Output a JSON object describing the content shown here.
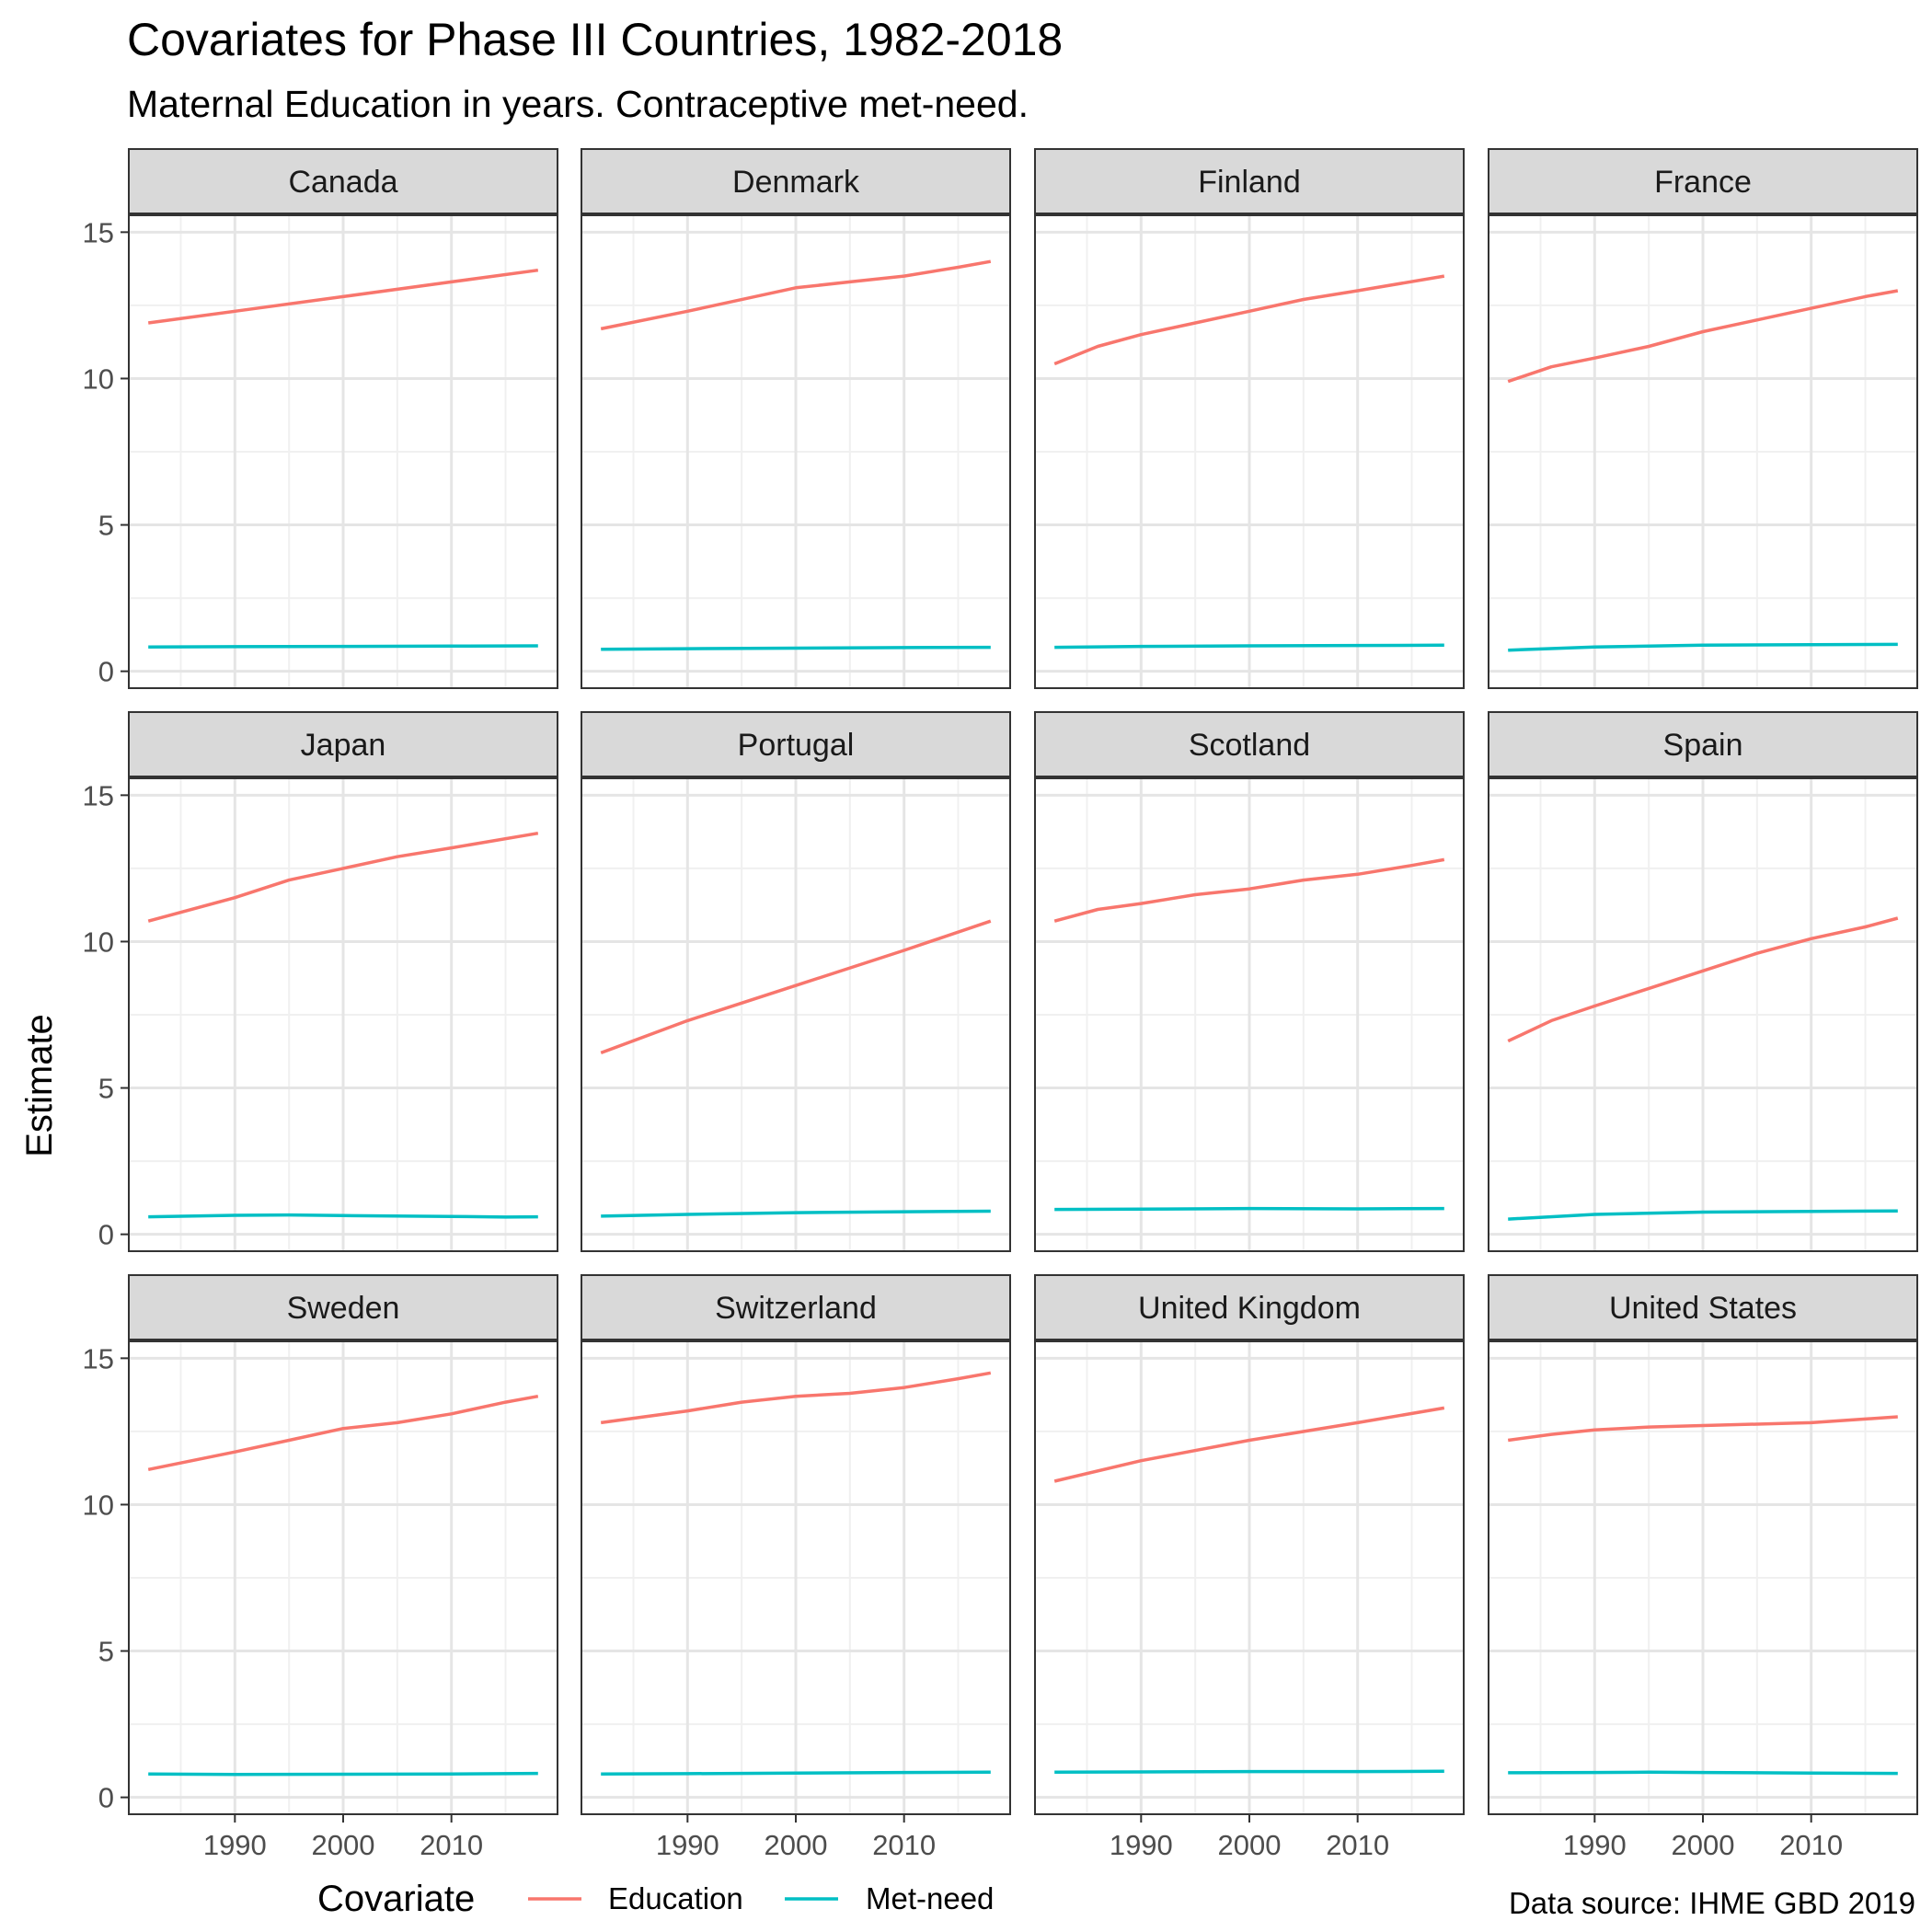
{
  "chart_data": {
    "type": "line",
    "title": "Covariates for Phase III Countries, 1982-2018",
    "subtitle": "Maternal Education in years. Contraceptive met-need.",
    "ylabel": "Estimate",
    "xlabel": "",
    "caption": "Data source: IHME GBD 2019",
    "legend": {
      "title": "Covariate",
      "position": "bottom",
      "items": [
        {
          "name": "Education",
          "color": "#F8766D"
        },
        {
          "name": "Met-need",
          "color": "#00BFC4"
        }
      ]
    },
    "xlim": [
      1982,
      2018
    ],
    "ylim": [
      0,
      15
    ],
    "x_ticks": [
      1990,
      2000,
      2010
    ],
    "x_tick_labels": [
      "1990",
      "2000",
      "2010"
    ],
    "y_ticks": [
      0,
      5,
      10,
      15
    ],
    "y_tick_labels": [
      "0",
      "5",
      "10",
      "15"
    ],
    "grid": true,
    "facets": [
      {
        "title": "Canada",
        "series": [
          {
            "name": "Education",
            "x": [
              1982,
              1990,
              2000,
              2010,
              2018
            ],
            "y": [
              11.9,
              12.3,
              12.8,
              13.3,
              13.7
            ]
          },
          {
            "name": "Met-need",
            "x": [
              1982,
              1990,
              2000,
              2010,
              2018
            ],
            "y": [
              0.83,
              0.84,
              0.85,
              0.86,
              0.87
            ]
          }
        ]
      },
      {
        "title": "Denmark",
        "series": [
          {
            "name": "Education",
            "x": [
              1982,
              1990,
              2000,
              2005,
              2010,
              2015,
              2018
            ],
            "y": [
              11.7,
              12.3,
              13.1,
              13.3,
              13.5,
              13.8,
              14.0
            ]
          },
          {
            "name": "Met-need",
            "x": [
              1982,
              1990,
              2000,
              2010,
              2018
            ],
            "y": [
              0.75,
              0.77,
              0.79,
              0.81,
              0.82
            ]
          }
        ]
      },
      {
        "title": "Finland",
        "series": [
          {
            "name": "Education",
            "x": [
              1982,
              1986,
              1990,
              1995,
              2000,
              2005,
              2010,
              2018
            ],
            "y": [
              10.5,
              11.1,
              11.5,
              11.9,
              12.3,
              12.7,
              13.0,
              13.5
            ]
          },
          {
            "name": "Met-need",
            "x": [
              1982,
              1990,
              2000,
              2010,
              2018
            ],
            "y": [
              0.82,
              0.85,
              0.87,
              0.88,
              0.89
            ]
          }
        ]
      },
      {
        "title": "France",
        "series": [
          {
            "name": "Education",
            "x": [
              1982,
              1986,
              1990,
              1995,
              2000,
              2005,
              2010,
              2015,
              2018
            ],
            "y": [
              9.9,
              10.4,
              10.7,
              11.1,
              11.6,
              12.0,
              12.4,
              12.8,
              13.0
            ]
          },
          {
            "name": "Met-need",
            "x": [
              1982,
              1990,
              2000,
              2010,
              2018
            ],
            "y": [
              0.72,
              0.83,
              0.89,
              0.91,
              0.92
            ]
          }
        ]
      },
      {
        "title": "Japan",
        "series": [
          {
            "name": "Education",
            "x": [
              1982,
              1990,
              1995,
              2000,
              2005,
              2010,
              2018
            ],
            "y": [
              10.7,
              11.5,
              12.1,
              12.5,
              12.9,
              13.2,
              13.7
            ]
          },
          {
            "name": "Met-need",
            "x": [
              1982,
              1990,
              1995,
              2000,
              2010,
              2015,
              2018
            ],
            "y": [
              0.6,
              0.65,
              0.66,
              0.64,
              0.61,
              0.59,
              0.6
            ]
          }
        ]
      },
      {
        "title": "Portugal",
        "series": [
          {
            "name": "Education",
            "x": [
              1982,
              1990,
              2000,
              2010,
              2018
            ],
            "y": [
              6.2,
              7.3,
              8.5,
              9.7,
              10.7
            ]
          },
          {
            "name": "Met-need",
            "x": [
              1982,
              1990,
              2000,
              2010,
              2018
            ],
            "y": [
              0.62,
              0.68,
              0.74,
              0.77,
              0.79
            ]
          }
        ]
      },
      {
        "title": "Scotland",
        "series": [
          {
            "name": "Education",
            "x": [
              1982,
              1986,
              1990,
              1995,
              2000,
              2005,
              2010,
              2015,
              2018
            ],
            "y": [
              10.7,
              11.1,
              11.3,
              11.6,
              11.8,
              12.1,
              12.3,
              12.6,
              12.8
            ]
          },
          {
            "name": "Met-need",
            "x": [
              1982,
              1990,
              2000,
              2010,
              2018
            ],
            "y": [
              0.85,
              0.86,
              0.88,
              0.87,
              0.88
            ]
          }
        ]
      },
      {
        "title": "Spain",
        "series": [
          {
            "name": "Education",
            "x": [
              1982,
              1986,
              1990,
              1995,
              2000,
              2005,
              2010,
              2015,
              2018
            ],
            "y": [
              6.6,
              7.3,
              7.8,
              8.4,
              9.0,
              9.6,
              10.1,
              10.5,
              10.8
            ]
          },
          {
            "name": "Met-need",
            "x": [
              1982,
              1990,
              2000,
              2010,
              2018
            ],
            "y": [
              0.52,
              0.68,
              0.76,
              0.78,
              0.8
            ]
          }
        ]
      },
      {
        "title": "Sweden",
        "series": [
          {
            "name": "Education",
            "x": [
              1982,
              1990,
              1995,
              2000,
              2005,
              2010,
              2015,
              2018
            ],
            "y": [
              11.2,
              11.8,
              12.2,
              12.6,
              12.8,
              13.1,
              13.5,
              13.7
            ]
          },
          {
            "name": "Met-need",
            "x": [
              1982,
              1990,
              2000,
              2010,
              2018
            ],
            "y": [
              0.8,
              0.78,
              0.79,
              0.8,
              0.82
            ]
          }
        ]
      },
      {
        "title": "Switzerland",
        "series": [
          {
            "name": "Education",
            "x": [
              1982,
              1990,
              1995,
              2000,
              2005,
              2010,
              2015,
              2018
            ],
            "y": [
              12.8,
              13.2,
              13.5,
              13.7,
              13.8,
              14.0,
              14.3,
              14.5
            ]
          },
          {
            "name": "Met-need",
            "x": [
              1982,
              1990,
              2000,
              2010,
              2018
            ],
            "y": [
              0.8,
              0.81,
              0.83,
              0.85,
              0.86
            ]
          }
        ]
      },
      {
        "title": "United Kingdom",
        "series": [
          {
            "name": "Education",
            "x": [
              1982,
              1990,
              2000,
              2010,
              2018
            ],
            "y": [
              10.8,
              11.5,
              12.2,
              12.8,
              13.3
            ]
          },
          {
            "name": "Met-need",
            "x": [
              1982,
              1990,
              2000,
              2010,
              2018
            ],
            "y": [
              0.86,
              0.87,
              0.88,
              0.88,
              0.89
            ]
          }
        ]
      },
      {
        "title": "United States",
        "series": [
          {
            "name": "Education",
            "x": [
              1982,
              1986,
              1990,
              1995,
              2000,
              2010,
              2018
            ],
            "y": [
              12.2,
              12.4,
              12.55,
              12.65,
              12.7,
              12.8,
              13.0
            ]
          },
          {
            "name": "Met-need",
            "x": [
              1982,
              1990,
              1995,
              2000,
              2010,
              2018
            ],
            "y": [
              0.84,
              0.85,
              0.86,
              0.85,
              0.83,
              0.82
            ]
          }
        ]
      }
    ]
  }
}
